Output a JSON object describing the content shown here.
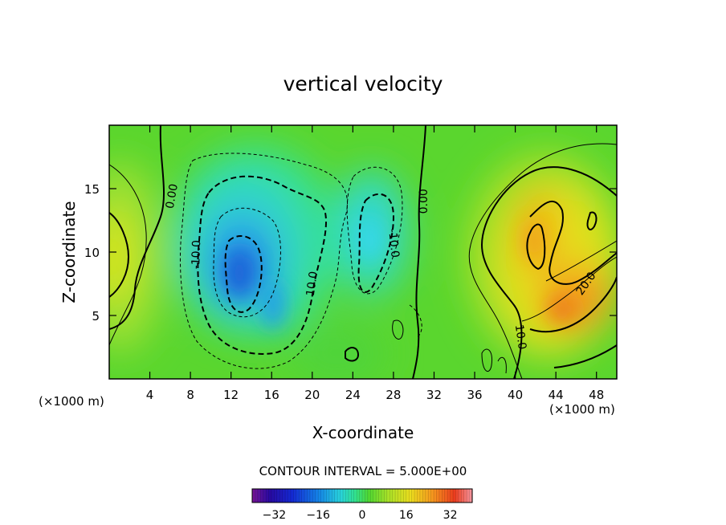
{
  "chart_data": {
    "type": "heatmap",
    "title": "vertical velocity",
    "xlabel": "X-coordinate",
    "ylabel": "Z-coordinate",
    "x_unit_label": "(×1000 m)",
    "z_unit_label": "(×1000 m)",
    "xlim": [
      0,
      50
    ],
    "ylim": [
      0,
      20
    ],
    "x_ticks": [
      4,
      8,
      12,
      16,
      20,
      24,
      28,
      32,
      36,
      40,
      44,
      48
    ],
    "y_ticks": [
      5,
      10,
      15
    ],
    "contour_interval_text": "CONTOUR INTERVAL = 5.000E+00",
    "contour_interval": 5,
    "colorbar_range": [
      -40,
      40
    ],
    "colorbar_ticks": [
      -32,
      -16,
      0,
      16,
      32
    ],
    "contour_labels": [
      {
        "text": "0.00",
        "x": 6.2,
        "z": 14.4,
        "angle": -80
      },
      {
        "text": "-10.0",
        "x": 8.6,
        "z": 9.8,
        "angle": -88
      },
      {
        "text": "10.0",
        "x": 20.0,
        "z": 7.5,
        "angle": -82
      },
      {
        "text": "-10.0",
        "x": 28.0,
        "z": 10.7,
        "angle": 84
      },
      {
        "text": "0.00",
        "x": 31.0,
        "z": 14.0,
        "angle": -90
      },
      {
        "text": "10.0",
        "x": 40.5,
        "z": 3.3,
        "angle": 82
      },
      {
        "text": "20.0",
        "x": 47.0,
        "z": 7.5,
        "angle": -55
      }
    ],
    "features": [
      {
        "name": "left-updraft",
        "x": 0.5,
        "z": 10.0,
        "peak_w": 14
      },
      {
        "name": "central-downdraft",
        "x": 13.5,
        "z": 8.5,
        "peak_w": -26
      },
      {
        "name": "secondary-downdraft",
        "x": 26.0,
        "z": 11.5,
        "peak_w": -14
      },
      {
        "name": "right-updraft-lower",
        "x": 44.0,
        "z": 5.5,
        "peak_w": 26
      },
      {
        "name": "right-updraft-upper",
        "x": 42.0,
        "z": 11.5,
        "peak_w": 20
      }
    ]
  }
}
